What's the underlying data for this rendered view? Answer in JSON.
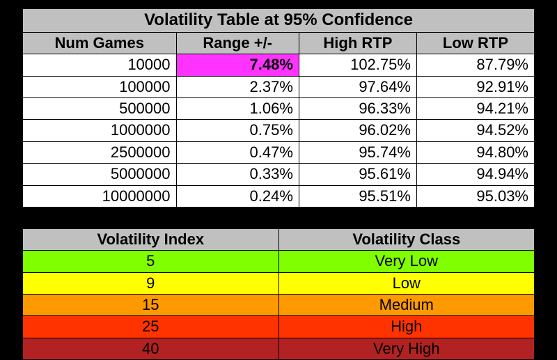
{
  "volatility_table": {
    "title": "Volatility Table at 95% Confidence",
    "columns": [
      "Num Games",
      "Range +/-",
      "High RTP",
      "Low RTP"
    ],
    "col_widths": [
      "30%",
      "24%",
      "23%",
      "23%"
    ],
    "header_bg": "#c0c0c0",
    "highlight_bg": "#ff33ff",
    "rows": [
      {
        "num_games": "10000",
        "range": "7.48%",
        "high": "102.75%",
        "low": "87.79%",
        "highlight_range": true
      },
      {
        "num_games": "100000",
        "range": "2.37%",
        "high": "97.64%",
        "low": "92.91%",
        "highlight_range": false
      },
      {
        "num_games": "500000",
        "range": "1.06%",
        "high": "96.33%",
        "low": "94.21%",
        "highlight_range": false
      },
      {
        "num_games": "1000000",
        "range": "0.75%",
        "high": "96.02%",
        "low": "94.52%",
        "highlight_range": false
      },
      {
        "num_games": "2500000",
        "range": "0.47%",
        "high": "95.74%",
        "low": "94.80%",
        "highlight_range": false
      },
      {
        "num_games": "5000000",
        "range": "0.33%",
        "high": "95.61%",
        "low": "94.94%",
        "highlight_range": false
      },
      {
        "num_games": "10000000",
        "range": "0.24%",
        "high": "95.51%",
        "low": "95.03%",
        "highlight_range": false
      }
    ]
  },
  "index_table": {
    "columns": [
      "Volatility Index",
      "Volatility Class"
    ],
    "header_bg": "#c0c0c0",
    "rows": [
      {
        "index": "5",
        "class": "Very Low",
        "bg": "#7fff00"
      },
      {
        "index": "9",
        "class": "Low",
        "bg": "#ffff00"
      },
      {
        "index": "15",
        "class": "Medium",
        "bg": "#ff9900"
      },
      {
        "index": "25",
        "class": "High",
        "bg": "#ff3300"
      },
      {
        "index": "40",
        "class": "Very High",
        "bg": "#b22222"
      }
    ]
  }
}
